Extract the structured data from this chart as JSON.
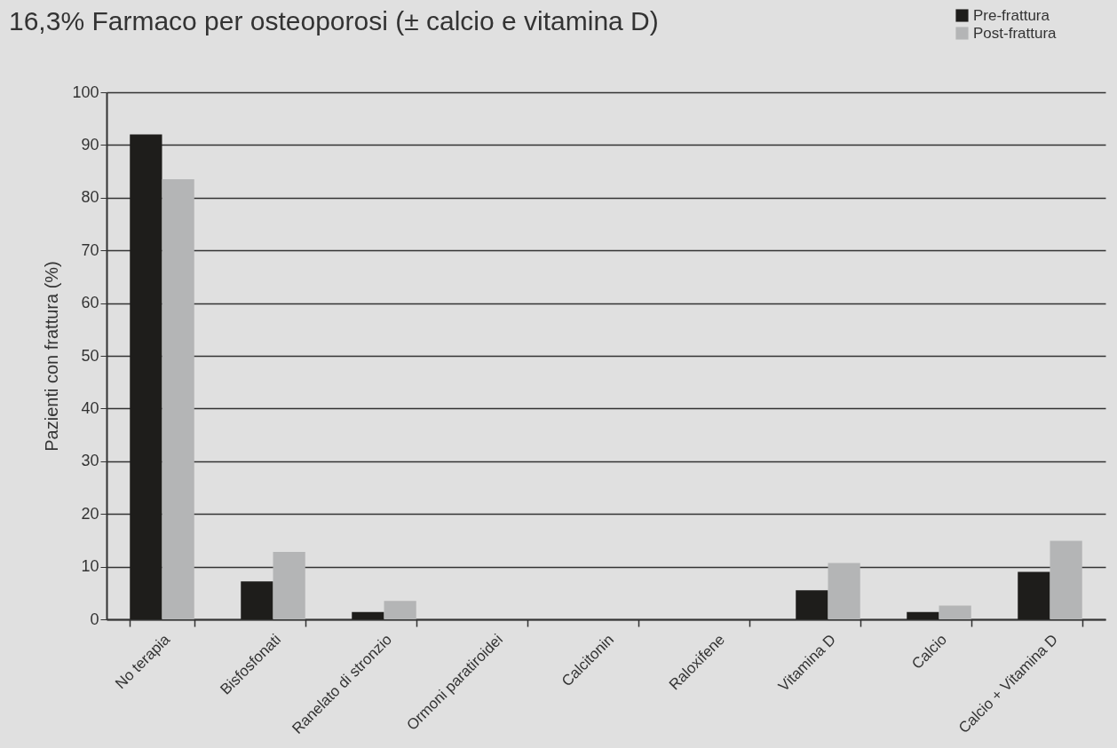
{
  "chart_data": {
    "type": "bar",
    "title": "16,3% Farmaco per osteoporosi (± calcio e vitamina D)",
    "ylabel": "Pazienti con frattura (%)",
    "categories": [
      "No terapia",
      "Bisfosfonati",
      "Ranelato di stronzio",
      "Ormoni paratiroidei",
      "Calcitonin",
      "Raloxifene",
      "Vitamina D",
      "Calcio",
      "Calcio + Vitamina D"
    ],
    "series": [
      {
        "name": "Pre-frattura",
        "color": "#1e1d1b",
        "values": [
          92,
          7.2,
          1.4,
          0,
          0,
          0,
          5.5,
          1.4,
          9.0
        ]
      },
      {
        "name": "Post-frattura",
        "color": "#b4b5b6",
        "values": [
          83.5,
          12.8,
          3.5,
          0,
          0,
          0,
          10.7,
          2.6,
          14.9
        ]
      }
    ],
    "ylim": [
      0,
      100
    ],
    "yticks": [
      0,
      10,
      20,
      30,
      40,
      50,
      60,
      70,
      80,
      90,
      100
    ],
    "grid": "y",
    "legend": "top right"
  }
}
